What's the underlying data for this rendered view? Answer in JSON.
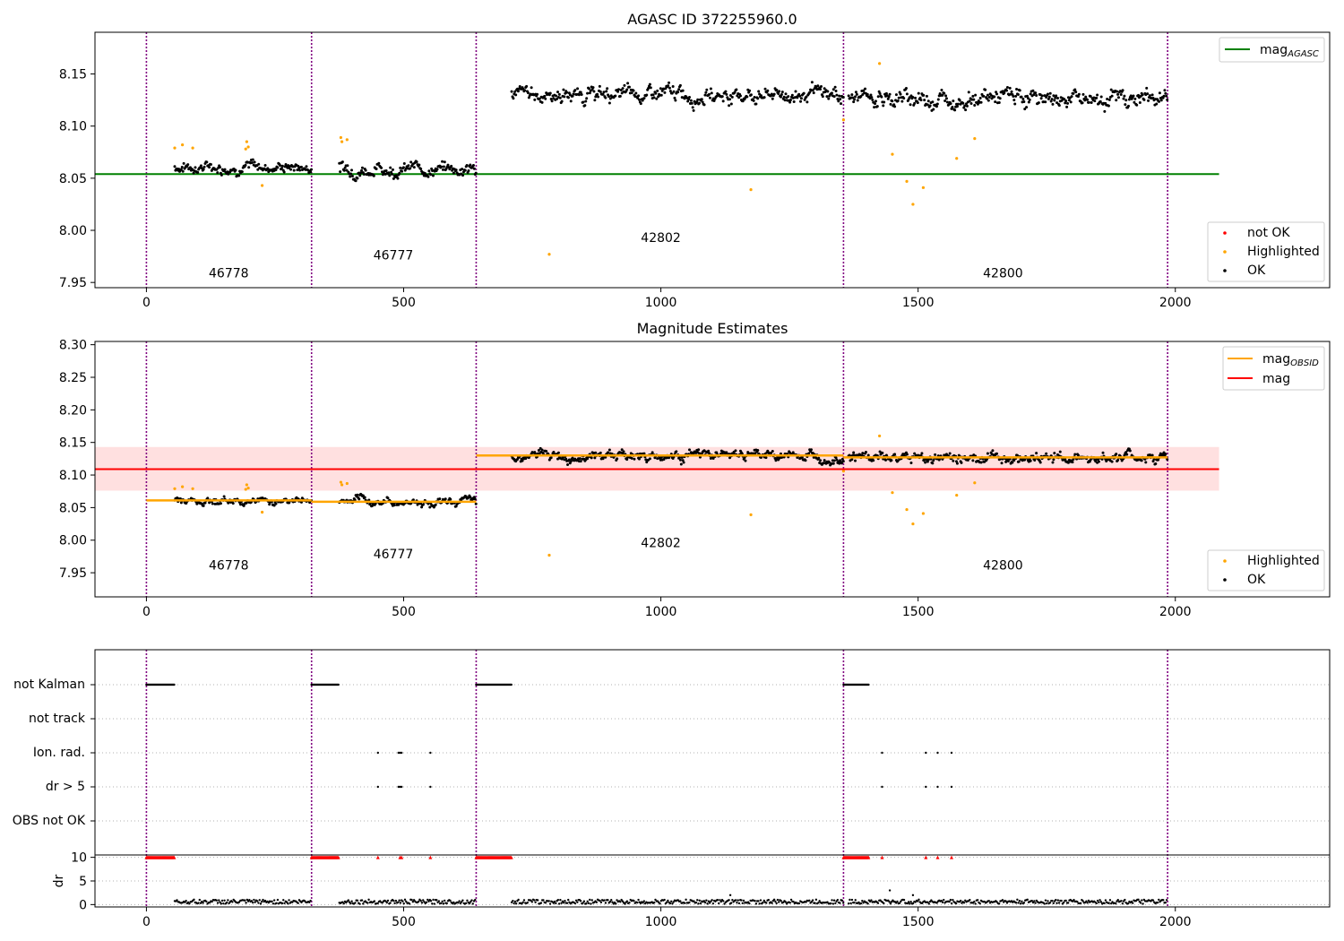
{
  "panel1": {
    "title": "AGASC ID 372255960.0",
    "legend_top": [
      {
        "label": "mag",
        "sub": "AGASC",
        "color": "#008000"
      }
    ],
    "legend_bottom": [
      {
        "label": "not OK",
        "color": "#ff0000"
      },
      {
        "label": "Highlighted",
        "color": "#ffa500"
      },
      {
        "label": "OK",
        "color": "#000000"
      }
    ]
  },
  "panel2": {
    "title": "Magnitude Estimates",
    "legend_top": [
      {
        "label": "mag",
        "sub": "OBSID",
        "color": "#ffa500"
      },
      {
        "label": "mag",
        "sub": "",
        "color": "#ff0000"
      }
    ],
    "legend_bottom": [
      {
        "label": "Highlighted",
        "color": "#ffa500"
      },
      {
        "label": "OK",
        "color": "#000000"
      }
    ]
  },
  "panel3": {
    "categories": [
      "not Kalman",
      "not track",
      "Ion. rad.",
      "dr > 5",
      "OBS not OK"
    ],
    "dr_ylabel": "dr"
  },
  "colors": {
    "vline": "#800080",
    "ok": "#000000",
    "highlight": "#ffa500",
    "mag": "#ff0000",
    "agasc": "#008000",
    "band": "#ffe0e0"
  },
  "chart_data": [
    {
      "type": "scatter",
      "title": "AGASC ID 372255960.0",
      "xlim": [
        -100,
        2300
      ],
      "ylim": [
        7.945,
        8.19
      ],
      "xticks": [
        0,
        500,
        1000,
        1500,
        2000
      ],
      "yticks": [
        7.95,
        8.0,
        8.05,
        8.1,
        8.15
      ],
      "obs_boundaries": [
        0,
        321,
        641,
        1355,
        1985
      ],
      "observations": [
        {
          "obsid": "46778",
          "x_range": [
            55,
            321
          ],
          "mean": 8.061,
          "label_x": 160,
          "label_y": 7.955
        },
        {
          "obsid": "46777",
          "x_range": [
            375,
            641
          ],
          "mean": 8.059,
          "label_x": 480,
          "label_y": 7.972
        },
        {
          "obsid": "42802",
          "x_range": [
            710,
            1355
          ],
          "mean": 8.13,
          "label_x": 1000,
          "label_y": 7.989
        },
        {
          "obsid": "42800",
          "x_range": [
            1365,
            1985
          ],
          "mean": 8.127,
          "label_x": 1665,
          "label_y": 7.955
        }
      ],
      "mag_agasc": {
        "value": 8.054,
        "x_range": [
          -100,
          2085
        ]
      },
      "highlighted_points": [
        {
          "x": 55,
          "y": 8.079
        },
        {
          "x": 70,
          "y": 8.082
        },
        {
          "x": 90,
          "y": 8.079
        },
        {
          "x": 193,
          "y": 8.078
        },
        {
          "x": 195,
          "y": 8.085
        },
        {
          "x": 198,
          "y": 8.08
        },
        {
          "x": 225,
          "y": 8.043
        },
        {
          "x": 378,
          "y": 8.089
        },
        {
          "x": 380,
          "y": 8.085
        },
        {
          "x": 390,
          "y": 8.087
        },
        {
          "x": 783,
          "y": 7.977
        },
        {
          "x": 1175,
          "y": 8.039
        },
        {
          "x": 1355,
          "y": 8.106
        },
        {
          "x": 1425,
          "y": 8.16
        },
        {
          "x": 1450,
          "y": 8.073
        },
        {
          "x": 1478,
          "y": 8.047
        },
        {
          "x": 1490,
          "y": 8.025
        },
        {
          "x": 1510,
          "y": 8.041
        },
        {
          "x": 1575,
          "y": 8.069
        },
        {
          "x": 1610,
          "y": 8.088
        }
      ],
      "ok_segments": [
        {
          "x_range": [
            55,
            321
          ],
          "base": 8.061,
          "spread": 0.006
        },
        {
          "x_range": [
            375,
            641
          ],
          "base": 8.059,
          "spread": 0.007
        },
        {
          "x_range": [
            710,
            1355
          ],
          "base": 8.13,
          "spread": 0.008
        },
        {
          "x_range": [
            1365,
            1985
          ],
          "base": 8.127,
          "spread": 0.009
        }
      ]
    },
    {
      "type": "scatter",
      "title": "Magnitude Estimates",
      "xlim": [
        -100,
        2300
      ],
      "ylim": [
        7.913,
        8.305
      ],
      "xticks": [
        0,
        500,
        1000,
        1500,
        2000
      ],
      "yticks": [
        7.95,
        8.0,
        8.05,
        8.1,
        8.15,
        8.2,
        8.25,
        8.3
      ],
      "mag": {
        "value": 8.109,
        "band": [
          8.076,
          8.143
        ],
        "x_range": [
          -100,
          2085
        ]
      },
      "mag_obsid": [
        {
          "x_range": [
            0,
            321
          ],
          "value": 8.061
        },
        {
          "x_range": [
            321,
            641
          ],
          "value": 8.059
        },
        {
          "x_range": [
            641,
            1355
          ],
          "value": 8.13
        },
        {
          "x_range": [
            1355,
            1985
          ],
          "value": 8.127
        }
      ]
    },
    {
      "type": "scatter",
      "categories": [
        "not Kalman",
        "not track",
        "Ion. rad.",
        "dr > 5",
        "OBS not OK"
      ],
      "flags": {
        "not Kalman": [
          [
            0,
            55
          ],
          [
            321,
            375
          ],
          [
            641,
            710
          ],
          [
            1355,
            1405
          ]
        ],
        "Ion. rad.": [
          450,
          490,
          493,
          496,
          552,
          1430,
          1515,
          1538,
          1565
        ],
        "dr > 5": [
          450,
          490,
          493,
          496,
          552,
          1430,
          1515,
          1538,
          1565
        ]
      },
      "dr": {
        "ylim": [
          -0.5,
          10.5
        ],
        "yticks": [
          0,
          5,
          10
        ],
        "typical": 0.6,
        "outliers": [
          {
            "x": 1135,
            "y": 2.0
          },
          {
            "x": 1445,
            "y": 3.0
          },
          {
            "x": 1490,
            "y": 2.0
          }
        ],
        "clipped_at": 10,
        "clipped_x": [
          [
            0,
            55
          ],
          [
            321,
            375
          ],
          [
            641,
            710
          ],
          [
            1355,
            1405
          ],
          450,
          493,
          496,
          552,
          1430,
          1515,
          1538,
          1565
        ]
      }
    }
  ]
}
